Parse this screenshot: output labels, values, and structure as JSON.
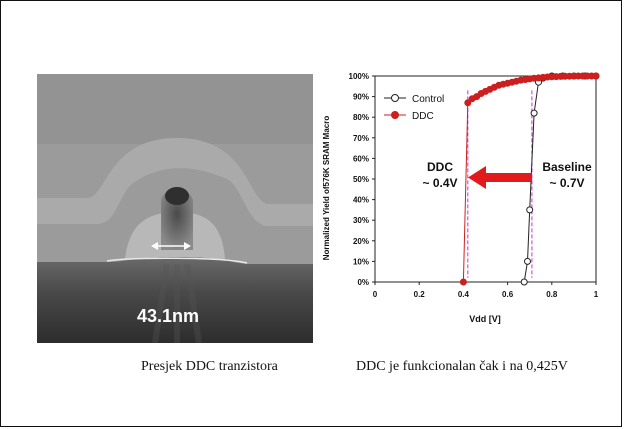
{
  "figure": {
    "scale_label": "43.1nm",
    "caption_left": "Presjek DDC tranzistora",
    "caption_right": "DDC je funkcionalan čak i na 0,425V"
  },
  "colors": {
    "control": "#222222",
    "ddc": "#cc1f1f",
    "arrow": "#e11b1b",
    "guide": "#cc33cc"
  },
  "chart_data": {
    "type": "line",
    "title": "",
    "xlabel": "Vdd [V]",
    "ylabel": "Normalized Yield of576K SRAM Macro",
    "xlim": [
      0,
      1
    ],
    "ylim": [
      0,
      100
    ],
    "xticks": [
      "0",
      "0.2",
      "0.4",
      "0.6",
      "0.8",
      "1"
    ],
    "yticks": [
      "0%",
      "10%",
      "20%",
      "30%",
      "40%",
      "50%",
      "60%",
      "70%",
      "80%",
      "90%",
      "100%"
    ],
    "legend_placement": "top-left",
    "grid": false,
    "series": [
      {
        "name": "Control",
        "marker": "hollow-circle",
        "x": [
          0.675,
          0.69,
          0.7,
          0.72,
          0.74,
          0.76,
          0.8,
          0.85,
          0.9,
          0.95,
          1.0
        ],
        "y": [
          0,
          10,
          35,
          82,
          97,
          99,
          100,
          100,
          100,
          100,
          100
        ]
      },
      {
        "name": "DDC",
        "marker": "filled-circle",
        "x": [
          0.4,
          0.42,
          0.44,
          0.46,
          0.48,
          0.5,
          0.52,
          0.54,
          0.56,
          0.58,
          0.6,
          0.62,
          0.64,
          0.66,
          0.68,
          0.7,
          0.72,
          0.74,
          0.76,
          0.78,
          0.8,
          0.82,
          0.84,
          0.86,
          0.88,
          0.9,
          0.92,
          0.94,
          0.96,
          0.98,
          1.0
        ],
        "y": [
          0,
          87,
          89,
          90,
          91.5,
          92.5,
          93.5,
          94.5,
          95.5,
          96,
          96.5,
          97,
          97.5,
          98,
          98.3,
          98.6,
          98.9,
          99.1,
          99.3,
          99.5,
          99.6,
          99.7,
          99.8,
          99.85,
          99.9,
          99.95,
          100,
          100,
          100,
          100,
          100
        ]
      }
    ],
    "annotations": [
      {
        "id": "ddc",
        "line1": "DDC",
        "line2": "~ 0.4V"
      },
      {
        "id": "baseline",
        "line1": "Baseline",
        "line2": "~ 0.7V"
      }
    ],
    "guide_lines_x": [
      0.42,
      0.71
    ]
  }
}
